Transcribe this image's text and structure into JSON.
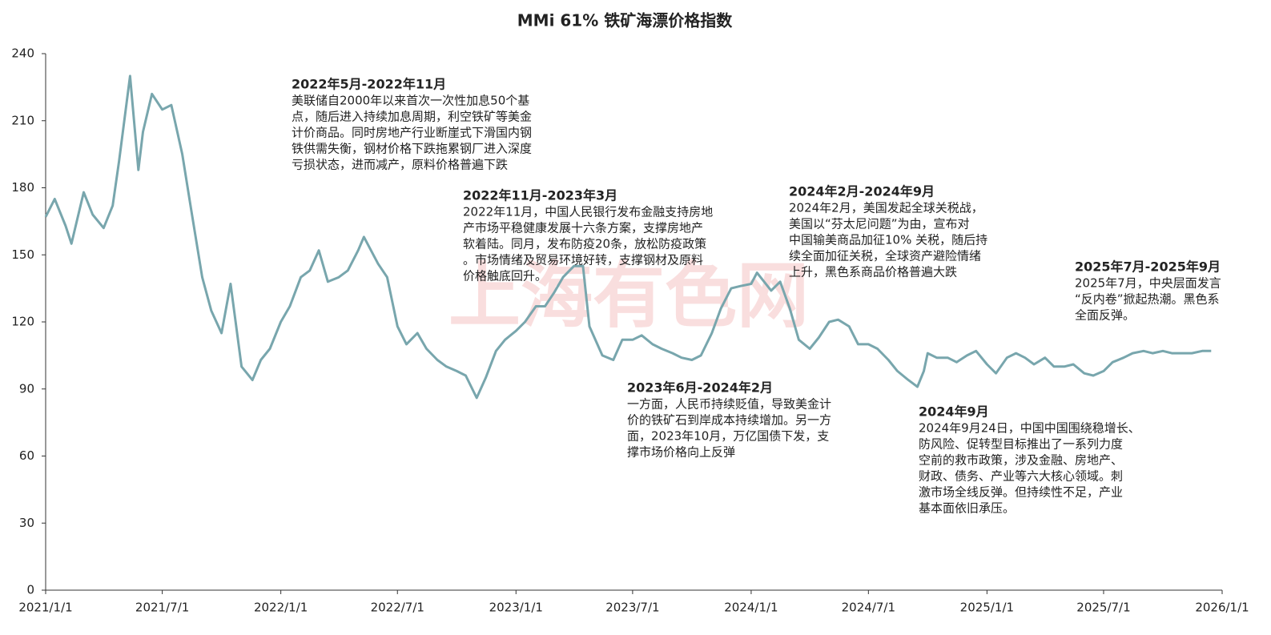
{
  "chart_data": {
    "type": "line",
    "title": "MMi 61% 铁矿海漂价格指数",
    "watermark": "上海有色网",
    "color": "#78a6ad",
    "xlim": [
      "2021/1/1",
      "2026/1/1"
    ],
    "xticks": [
      "2021/1/1",
      "2021/7/1",
      "2022/1/1",
      "2022/7/1",
      "2023/1/1",
      "2023/7/1",
      "2024/1/1",
      "2024/7/1",
      "2025/1/1",
      "2025/7/1",
      "2026/1/1"
    ],
    "ylim": [
      0,
      240
    ],
    "yticks": [
      0,
      30,
      60,
      90,
      120,
      150,
      180,
      210,
      240
    ],
    "grid": false,
    "x": [
      "2021/1/1",
      "2021/1/15",
      "2021/2/1",
      "2021/2/10",
      "2021/3/1",
      "2021/3/15",
      "2021/4/1",
      "2021/4/15",
      "2021/4/25",
      "2021/5/12",
      "2021/5/25",
      "2021/6/1",
      "2021/6/15",
      "2021/7/1",
      "2021/7/15",
      "2021/8/1",
      "2021/8/15",
      "2021/9/1",
      "2021/9/15",
      "2021/10/1",
      "2021/10/15",
      "2021/11/1",
      "2021/11/18",
      "2021/12/1",
      "2021/12/15",
      "2022/1/1",
      "2022/1/15",
      "2022/2/1",
      "2022/2/15",
      "2022/3/1",
      "2022/3/15",
      "2022/4/1",
      "2022/4/15",
      "2022/5/1",
      "2022/5/10",
      "2022/6/1",
      "2022/6/15",
      "2022/7/1",
      "2022/7/15",
      "2022/8/1",
      "2022/8/15",
      "2022/9/1",
      "2022/9/15",
      "2022/10/1",
      "2022/10/15",
      "2022/11/1",
      "2022/11/15",
      "2022/12/1",
      "2022/12/15",
      "2023/1/1",
      "2023/1/15",
      "2023/2/1",
      "2023/2/15",
      "2023/3/1",
      "2023/3/15",
      "2023/4/1",
      "2023/4/15",
      "2023/4/25",
      "2023/5/15",
      "2023/6/1",
      "2023/6/15",
      "2023/7/1",
      "2023/7/15",
      "2023/8/1",
      "2023/8/15",
      "2023/9/1",
      "2023/9/15",
      "2023/10/1",
      "2023/10/15",
      "2023/11/1",
      "2023/11/15",
      "2023/12/1",
      "2023/12/15",
      "2024/1/1",
      "2024/1/10",
      "2024/2/1",
      "2024/2/15",
      "2024/3/1",
      "2024/3/15",
      "2024/4/1",
      "2024/4/15",
      "2024/5/1",
      "2024/5/15",
      "2024/6/1",
      "2024/6/15",
      "2024/7/1",
      "2024/7/15",
      "2024/8/1",
      "2024/8/15",
      "2024/9/1",
      "2024/9/15",
      "2024/9/25",
      "2024/10/1",
      "2024/10/15",
      "2024/11/1",
      "2024/11/15",
      "2024/12/1",
      "2024/12/15",
      "2025/1/1",
      "2025/1/15",
      "2025/2/1",
      "2025/2/15",
      "2025/3/1",
      "2025/3/15",
      "2025/4/1",
      "2025/4/15",
      "2025/5/1",
      "2025/5/15",
      "2025/6/1",
      "2025/6/15",
      "2025/7/1",
      "2025/7/15",
      "2025/8/1",
      "2025/8/15",
      "2025/9/1",
      "2025/9/15",
      "2025/10/1",
      "2025/10/15",
      "2025/11/1",
      "2025/11/15",
      "2025/12/1",
      "2025/12/15"
    ],
    "values": [
      167,
      175,
      163,
      155,
      178,
      168,
      162,
      172,
      192,
      230,
      188,
      205,
      222,
      215,
      217,
      195,
      170,
      140,
      125,
      115,
      137,
      100,
      94,
      103,
      108,
      120,
      127,
      140,
      143,
      152,
      138,
      140,
      143,
      152,
      158,
      146,
      140,
      118,
      110,
      115,
      108,
      103,
      100,
      98,
      96,
      86,
      95,
      107,
      112,
      116,
      120,
      127,
      127,
      133,
      140,
      145,
      145,
      118,
      105,
      103,
      112,
      112,
      114,
      110,
      108,
      106,
      104,
      103,
      105,
      115,
      126,
      135,
      136,
      137,
      142,
      134,
      138,
      126,
      112,
      108,
      113,
      120,
      121,
      118,
      110,
      110,
      108,
      103,
      98,
      94,
      91,
      98,
      106,
      104,
      104,
      102,
      105,
      107,
      101,
      97,
      104,
      106,
      104,
      101,
      104,
      100,
      100,
      101,
      97,
      96,
      98,
      102,
      104,
      106,
      107,
      106,
      107,
      106,
      106,
      106,
      107,
      107
    ],
    "annotations": [
      {
        "title": "2022年5月-2022年11月",
        "lines": [
          "美联储自2000年以来首次一次性加息50个基",
          "点，随后进入持续加息周期，利空铁矿等美金",
          "计价商品。同时房地产行业断崖式下滑国内钢",
          "铁供需失衡，钢材价格下跌拖累钢厂进入深度",
          "亏损状态，进而减产，原料价格普遍下跌"
        ]
      },
      {
        "title": "2022年11月-2023年3月",
        "lines": [
          "2022年11月，中国人民银行发布金融支持房地",
          "产市场平稳健康发展十六条方案，支撑房地产",
          "软着陆。同月，发布防疫20条，放松防疫政策",
          "。市场情绪及贸易环境好转，支撑钢材及原料",
          "价格触底回升。"
        ]
      },
      {
        "title": "2023年6月-2024年2月",
        "lines": [
          "一方面，人民币持续贬值，导致美金计",
          "价的铁矿石到岸成本持续增加。另一方",
          "面，2023年10月，万亿国债下发，支",
          "撑市场价格向上反弹"
        ]
      },
      {
        "title": "2024年2月-2024年9月",
        "lines": [
          "2024年2月，美国发起全球关税战，",
          "美国以“芬太尼问题”为由，宣布对",
          "中国输美商品加征10% 关税，随后持",
          "续全面加征关税，全球资产避险情绪",
          "上升，黑色系商品价格普遍大跌"
        ]
      },
      {
        "title": "2024年9月",
        "lines": [
          "2024年9月24日，中国中国围绕稳增长、",
          "防风险、促转型目标推出了一系列力度",
          "空前的救市政策，涉及金融、房地产、",
          "财政、债务、产业等六大核心领域。刺",
          "激市场全线反弹。但持续性不足，产业",
          "基本面依旧承压。"
        ]
      },
      {
        "title": "2025年7月-2025年9月",
        "lines": [
          "2025年7月，中央层面发言",
          "“反内卷”掀起热潮。黑色系",
          "全面反弹。"
        ]
      }
    ]
  }
}
